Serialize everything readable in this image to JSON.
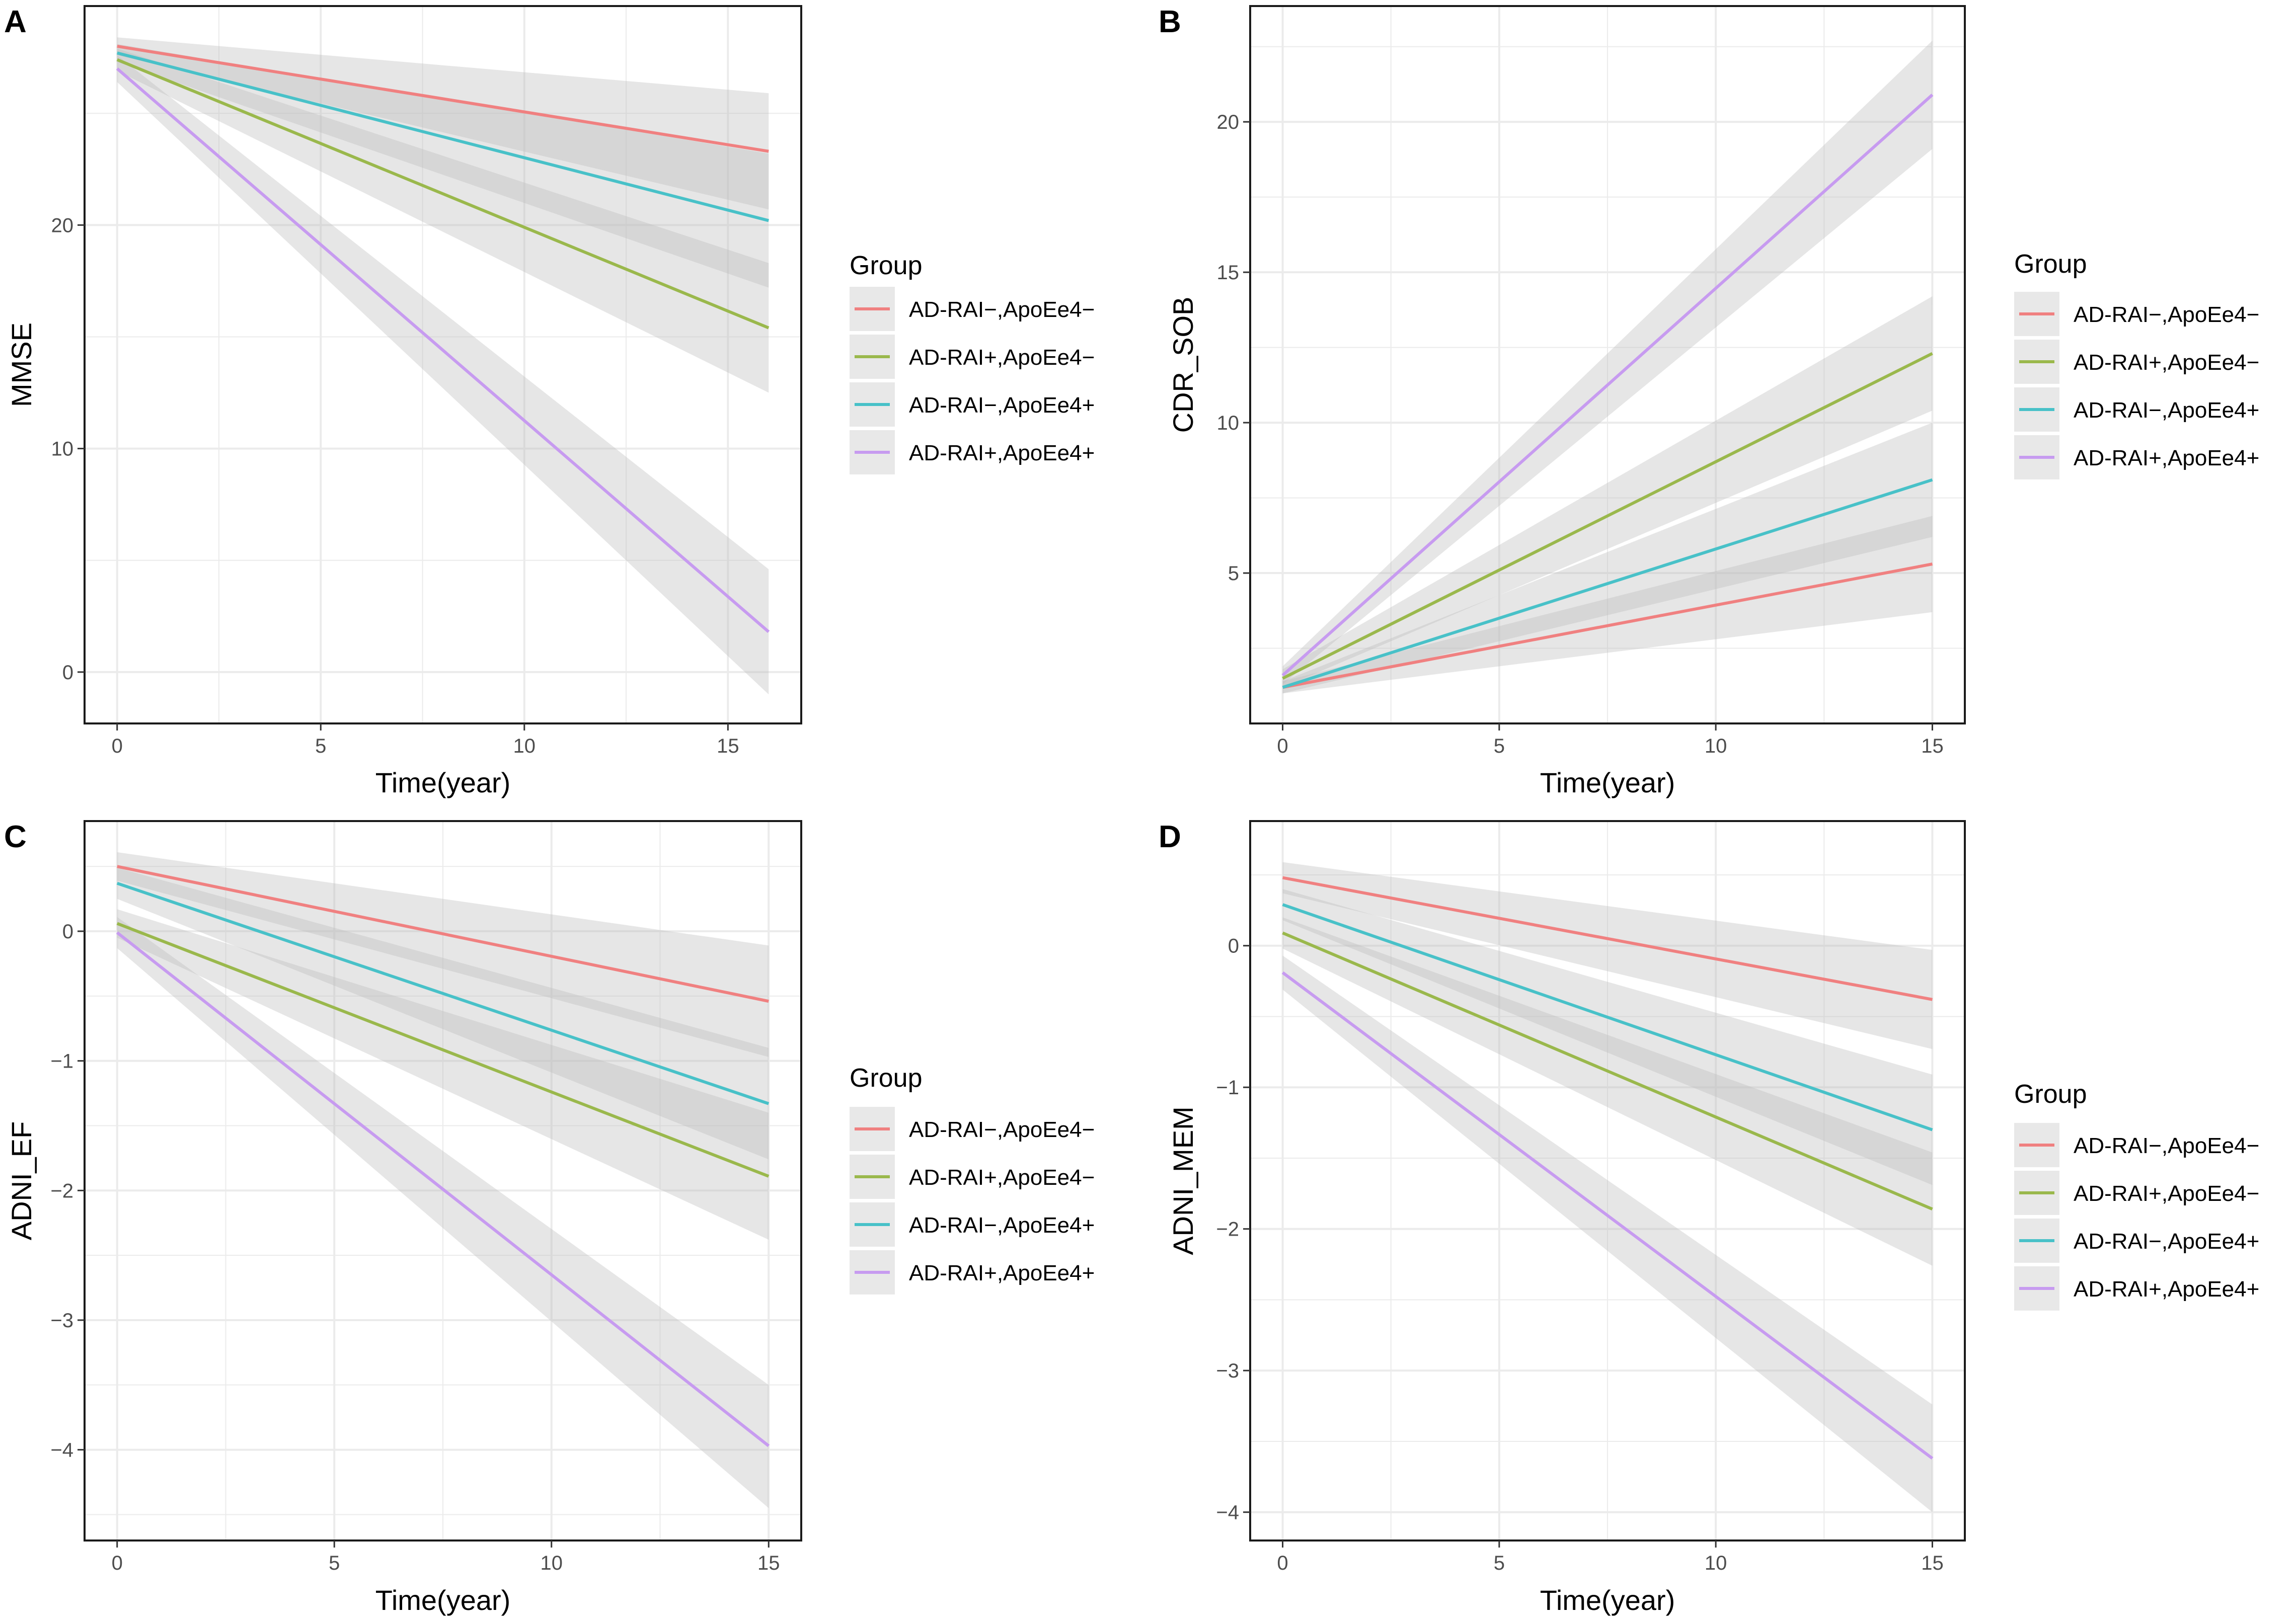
{
  "chart_data": [
    {
      "type": "line",
      "panel_letter": "A",
      "xlabel": "Time(year)",
      "ylabel": "MMSE",
      "xlim": [
        -0.8,
        16.8
      ],
      "ylim": [
        -2.3,
        29.8
      ],
      "x_ticks": [
        0,
        5,
        10,
        15
      ],
      "y_ticks": [
        0,
        10,
        20
      ],
      "grid": true,
      "legend_title": "Group",
      "legend_position": "right",
      "series": [
        {
          "name": "AD-RAI−,ApoEe4−",
          "color": "#f08080",
          "x": [
            0,
            16
          ],
          "y": [
            28.0,
            23.3
          ],
          "ci_low": [
            27.6,
            20.7
          ],
          "ci_high": [
            28.4,
            25.9
          ]
        },
        {
          "name": "AD-RAI+,ApoEe4−",
          "color": "#9ab84c",
          "x": [
            0,
            16
          ],
          "y": [
            27.4,
            15.4
          ],
          "ci_low": [
            26.9,
            12.5
          ],
          "ci_high": [
            27.9,
            18.3
          ]
        },
        {
          "name": "AD-RAI−,ApoEe4+",
          "color": "#48c1c8",
          "x": [
            0,
            16
          ],
          "y": [
            27.7,
            20.2
          ],
          "ci_low": [
            27.3,
            17.2
          ],
          "ci_high": [
            28.1,
            23.2
          ]
        },
        {
          "name": "AD-RAI+,ApoEe4+",
          "color": "#c79bf0",
          "x": [
            0,
            16
          ],
          "y": [
            27.0,
            1.8
          ],
          "ci_low": [
            26.4,
            -1.0
          ],
          "ci_high": [
            27.6,
            4.6
          ]
        }
      ]
    },
    {
      "type": "line",
      "panel_letter": "B",
      "xlabel": "Time(year)",
      "ylabel": "CDR_SOB",
      "xlim": [
        -0.75,
        15.75
      ],
      "ylim": [
        0.0,
        23.85
      ],
      "x_ticks": [
        0,
        5,
        10,
        15
      ],
      "y_ticks": [
        5,
        10,
        15,
        20
      ],
      "grid": true,
      "legend_title": "Group",
      "legend_position": "right",
      "series": [
        {
          "name": "AD-RAI−,ApoEe4−",
          "color": "#f08080",
          "x": [
            0,
            15
          ],
          "y": [
            1.2,
            5.3
          ],
          "ci_low": [
            1.0,
            3.7
          ],
          "ci_high": [
            1.4,
            6.9
          ]
        },
        {
          "name": "AD-RAI+,ApoEe4−",
          "color": "#9ab84c",
          "x": [
            0,
            15
          ],
          "y": [
            1.5,
            12.3
          ],
          "ci_low": [
            1.2,
            10.4
          ],
          "ci_high": [
            1.8,
            14.2
          ]
        },
        {
          "name": "AD-RAI−,ApoEe4+",
          "color": "#48c1c8",
          "x": [
            0,
            15
          ],
          "y": [
            1.2,
            8.1
          ],
          "ci_low": [
            1.0,
            6.2
          ],
          "ci_high": [
            1.4,
            10.0
          ]
        },
        {
          "name": "AD-RAI+,ApoEe4+",
          "color": "#c79bf0",
          "x": [
            0,
            15
          ],
          "y": [
            1.6,
            20.9
          ],
          "ci_low": [
            1.3,
            19.1
          ],
          "ci_high": [
            1.9,
            22.7
          ]
        }
      ]
    },
    {
      "type": "line",
      "panel_letter": "C",
      "xlabel": "Time(year)",
      "ylabel": "ADNI_EF",
      "xlim": [
        -0.75,
        15.75
      ],
      "ylim": [
        -4.7,
        0.85
      ],
      "x_ticks": [
        0,
        5,
        10,
        15
      ],
      "y_ticks": [
        0,
        -1,
        -2,
        -3,
        -4
      ],
      "grid": true,
      "legend_title": "Group",
      "legend_position": "right",
      "series": [
        {
          "name": "AD-RAI−,ApoEe4−",
          "color": "#f08080",
          "x": [
            0,
            15
          ],
          "y": [
            0.5,
            -0.54
          ],
          "ci_low": [
            0.39,
            -0.97
          ],
          "ci_high": [
            0.61,
            -0.11
          ]
        },
        {
          "name": "AD-RAI+,ApoEe4−",
          "color": "#9ab84c",
          "x": [
            0,
            15
          ],
          "y": [
            0.06,
            -1.89
          ],
          "ci_low": [
            -0.05,
            -2.38
          ],
          "ci_high": [
            0.17,
            -1.4
          ]
        },
        {
          "name": "AD-RAI−,ApoEe4+",
          "color": "#48c1c8",
          "x": [
            0,
            15
          ],
          "y": [
            0.37,
            -1.33
          ],
          "ci_low": [
            0.25,
            -1.76
          ],
          "ci_high": [
            0.49,
            -0.9
          ]
        },
        {
          "name": "AD-RAI+,ApoEe4+",
          "color": "#c79bf0",
          "x": [
            0,
            15
          ],
          "y": [
            -0.01,
            -3.97
          ],
          "ci_low": [
            -0.13,
            -4.45
          ],
          "ci_high": [
            0.11,
            -3.5
          ]
        }
      ]
    },
    {
      "type": "line",
      "panel_letter": "D",
      "xlabel": "Time(year)",
      "ylabel": "ADNI_MEM",
      "xlim": [
        -0.75,
        15.75
      ],
      "ylim": [
        -4.2,
        0.88
      ],
      "x_ticks": [
        0,
        5,
        10,
        15
      ],
      "y_ticks": [
        0,
        -1,
        -2,
        -3,
        -4
      ],
      "grid": true,
      "legend_title": "Group",
      "legend_position": "right",
      "series": [
        {
          "name": "AD-RAI−,ApoEe4−",
          "color": "#f08080",
          "x": [
            0,
            15
          ],
          "y": [
            0.48,
            -0.38
          ],
          "ci_low": [
            0.37,
            -0.73
          ],
          "ci_high": [
            0.59,
            -0.03
          ]
        },
        {
          "name": "AD-RAI+,ApoEe4−",
          "color": "#9ab84c",
          "x": [
            0,
            15
          ],
          "y": [
            0.09,
            -1.86
          ],
          "ci_low": [
            -0.02,
            -2.26
          ],
          "ci_high": [
            0.2,
            -1.46
          ]
        },
        {
          "name": "AD-RAI−,ApoEe4+",
          "color": "#48c1c8",
          "x": [
            0,
            15
          ],
          "y": [
            0.29,
            -1.3
          ],
          "ci_low": [
            0.18,
            -1.69
          ],
          "ci_high": [
            0.4,
            -0.91
          ]
        },
        {
          "name": "AD-RAI+,ApoEe4+",
          "color": "#c79bf0",
          "x": [
            0,
            15
          ],
          "y": [
            -0.19,
            -3.62
          ],
          "ci_low": [
            -0.31,
            -4.0
          ],
          "ci_high": [
            -0.07,
            -3.24
          ]
        }
      ]
    }
  ]
}
